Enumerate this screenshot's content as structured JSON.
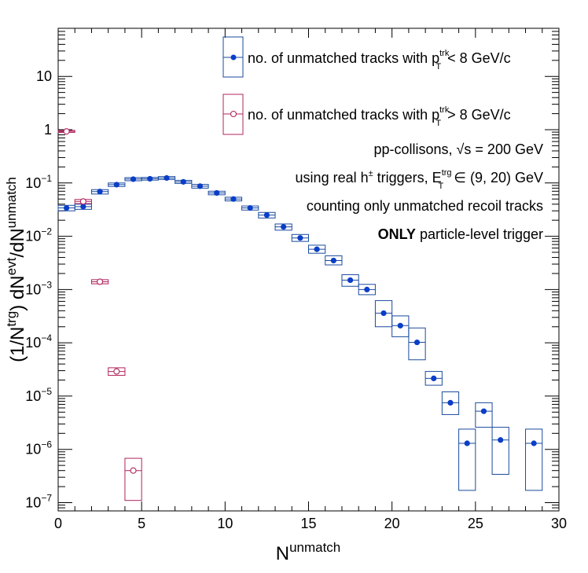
{
  "chart_data": {
    "type": "scatter",
    "xlabel": "N",
    "xlabel_sup": "unmatch",
    "ylabel_parts": {
      "a": "(1/N",
      "a_sup": "trg",
      "b": ") dN",
      "b_sup": "evt",
      "c": "/dN",
      "c_sup": "unmatch"
    },
    "xlim": [
      0,
      30
    ],
    "ylim": [
      7e-08,
      80
    ],
    "y_scale": "log",
    "x_ticks": [
      0,
      5,
      10,
      15,
      20,
      25,
      30
    ],
    "x_tick_labels": [
      "0",
      "5",
      "10",
      "15",
      "20",
      "25",
      "30"
    ],
    "y_ticks": [
      {
        "v": 1e-07,
        "m": "10",
        "e": "−7"
      },
      {
        "v": 1e-06,
        "m": "10",
        "e": "−6"
      },
      {
        "v": 1e-05,
        "m": "10",
        "e": "−5"
      },
      {
        "v": 0.0001,
        "m": "10",
        "e": "−4"
      },
      {
        "v": 0.001,
        "m": "10",
        "e": "−3"
      },
      {
        "v": 0.01,
        "m": "10",
        "e": "−2"
      },
      {
        "v": 0.1,
        "m": "10",
        "e": "−1"
      },
      {
        "v": 1,
        "m": "1",
        "e": ""
      },
      {
        "v": 10,
        "m": "10",
        "e": ""
      }
    ],
    "series": [
      {
        "name_main": "no. of unmatched tracks with p",
        "name_sup": "trk",
        "name_sub": "T",
        "name_tail": " < 8 GeV/c",
        "color": "#1a4a9e",
        "marker_color": "#0a3ec8",
        "marker": "filled-circle",
        "points": [
          {
            "x": 0.5,
            "y": 0.034,
            "lo": 0.03,
            "hi": 0.038
          },
          {
            "x": 1.5,
            "y": 0.036,
            "lo": 0.032,
            "hi": 0.04
          },
          {
            "x": 2.5,
            "y": 0.069,
            "lo": 0.062,
            "hi": 0.075
          },
          {
            "x": 3.5,
            "y": 0.093,
            "lo": 0.086,
            "hi": 0.1
          },
          {
            "x": 4.5,
            "y": 0.118,
            "lo": 0.11,
            "hi": 0.126
          },
          {
            "x": 5.5,
            "y": 0.12,
            "lo": 0.113,
            "hi": 0.127
          },
          {
            "x": 6.5,
            "y": 0.124,
            "lo": 0.116,
            "hi": 0.132
          },
          {
            "x": 7.5,
            "y": 0.105,
            "lo": 0.098,
            "hi": 0.112
          },
          {
            "x": 8.5,
            "y": 0.087,
            "lo": 0.08,
            "hi": 0.094
          },
          {
            "x": 9.5,
            "y": 0.065,
            "lo": 0.06,
            "hi": 0.07
          },
          {
            "x": 10.5,
            "y": 0.05,
            "lo": 0.046,
            "hi": 0.054
          },
          {
            "x": 11.5,
            "y": 0.034,
            "lo": 0.031,
            "hi": 0.037
          },
          {
            "x": 12.5,
            "y": 0.025,
            "lo": 0.022,
            "hi": 0.028
          },
          {
            "x": 13.5,
            "y": 0.015,
            "lo": 0.013,
            "hi": 0.017
          },
          {
            "x": 14.5,
            "y": 0.0093,
            "lo": 0.008,
            "hi": 0.0108
          },
          {
            "x": 15.5,
            "y": 0.0057,
            "lo": 0.0048,
            "hi": 0.0068
          },
          {
            "x": 16.5,
            "y": 0.0035,
            "lo": 0.0029,
            "hi": 0.0043
          },
          {
            "x": 17.5,
            "y": 0.0015,
            "lo": 0.00115,
            "hi": 0.0019
          },
          {
            "x": 18.5,
            "y": 0.001,
            "lo": 0.0008,
            "hi": 0.00125
          },
          {
            "x": 19.5,
            "y": 0.00036,
            "lo": 0.0002,
            "hi": 0.00062
          },
          {
            "x": 20.5,
            "y": 0.00021,
            "lo": 0.00013,
            "hi": 0.00032
          },
          {
            "x": 21.5,
            "y": 0.000102,
            "lo": 4.8e-05,
            "hi": 0.00019
          },
          {
            "x": 22.5,
            "y": 2.15e-05,
            "lo": 1.6e-05,
            "hi": 2.9e-05
          },
          {
            "x": 23.5,
            "y": 7.5e-06,
            "lo": 4.5e-06,
            "hi": 1.2e-05
          },
          {
            "x": 24.5,
            "y": 1.3e-06,
            "lo": 1.7e-07,
            "hi": 2.4e-06
          },
          {
            "x": 25.5,
            "y": 5.2e-06,
            "lo": 2.6e-06,
            "hi": 7.5e-06
          },
          {
            "x": 26.5,
            "y": 1.5e-06,
            "lo": 3.4e-07,
            "hi": 2.6e-06
          },
          {
            "x": 28.5,
            "y": 1.3e-06,
            "lo": 1.7e-07,
            "hi": 2.4e-06
          }
        ]
      },
      {
        "name_main": "no. of unmatched tracks with p",
        "name_sup": "trk",
        "name_sub": "T",
        "name_tail": " > 8 GeV/c",
        "color": "#b0245c",
        "marker_color": "#b0245c",
        "marker": "open-circle",
        "points": [
          {
            "x": 0.5,
            "y": 0.93,
            "lo": 0.89,
            "hi": 0.97
          },
          {
            "x": 1.5,
            "y": 0.045,
            "lo": 0.041,
            "hi": 0.049
          },
          {
            "x": 2.5,
            "y": 0.0014,
            "lo": 0.00128,
            "hi": 0.00153
          },
          {
            "x": 3.5,
            "y": 2.9e-05,
            "lo": 2.45e-05,
            "hi": 3.4e-05
          },
          {
            "x": 4.5,
            "y": 4e-07,
            "lo": 1.1e-07,
            "hi": 6.8e-07
          }
        ]
      }
    ],
    "annotations": {
      "line1_pre": "pp-collisons, ",
      "line1_sqrt": "√s",
      "line1_post": " = 200 GeV",
      "line2_pre": "using real h",
      "line2_pm": "±",
      "line2_mid": " triggers, E",
      "line2_sup": "trg",
      "line2_sub": "T",
      "line2_post": " ∈ (9, 20) GeV",
      "line3": "counting only unmatched recoil tracks",
      "line4_bold": "ONLY",
      "line4_rest": " particle-level trigger"
    },
    "grid": false,
    "legend_position": "top-right"
  }
}
